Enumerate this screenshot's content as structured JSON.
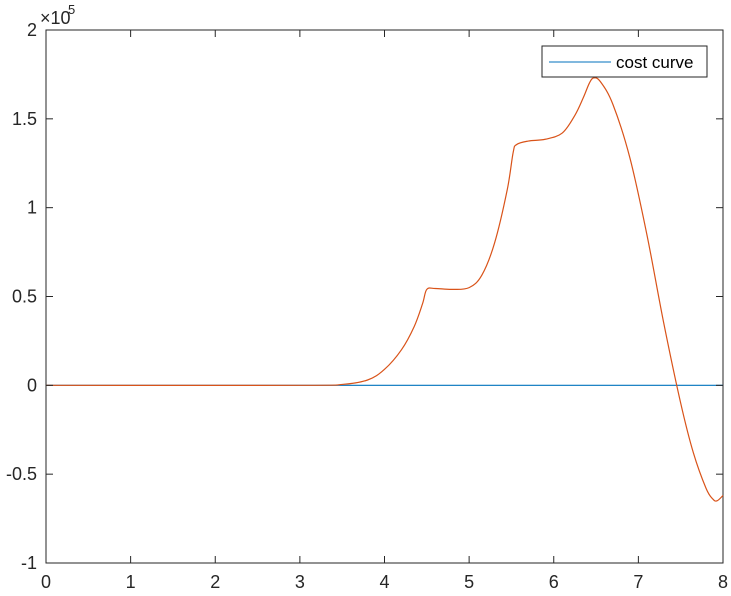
{
  "chart_data": {
    "type": "line",
    "title": "",
    "xlabel": "",
    "ylabel": "",
    "xlim": [
      0,
      8
    ],
    "ylim": [
      -100000,
      200000
    ],
    "x_ticks": [
      "0",
      "1",
      "2",
      "3",
      "4",
      "5",
      "6",
      "7",
      "8"
    ],
    "y_ticks": [
      "2",
      "1.5",
      "1",
      "0.5",
      "0",
      "-0.5",
      "-1"
    ],
    "y_tick_values": [
      200000,
      150000,
      100000,
      50000,
      0,
      -50000,
      -100000
    ],
    "y_exponent_base": "×10",
    "y_exponent_power": "5",
    "grid": false,
    "legend_placement": "top-right",
    "series": [
      {
        "name": "cost curve",
        "color": "#0072BD",
        "x": [
          0,
          8
        ],
        "y": [
          0,
          0
        ]
      },
      {
        "color": "#D95319",
        "x": [
          0,
          3.0,
          3.5,
          3.8,
          4.0,
          4.2,
          4.35,
          4.45,
          4.5,
          4.6,
          4.8,
          5.0,
          5.15,
          5.3,
          5.45,
          5.52,
          5.56,
          5.7,
          5.9,
          6.1,
          6.25,
          6.35,
          6.42,
          6.47,
          6.55,
          6.7,
          6.9,
          7.1,
          7.3,
          7.5,
          7.65,
          7.8,
          7.88,
          7.93,
          8.0
        ],
        "y": [
          0,
          0,
          500,
          3000,
          9000,
          20000,
          33000,
          46000,
          54000,
          54500,
          54000,
          55000,
          62000,
          80000,
          110000,
          131000,
          135500,
          137500,
          138500,
          142000,
          152000,
          162000,
          170000,
          173000,
          171000,
          158000,
          128000,
          85000,
          35000,
          -10000,
          -38000,
          -58000,
          -64000,
          -65000,
          -62000
        ]
      }
    ]
  }
}
